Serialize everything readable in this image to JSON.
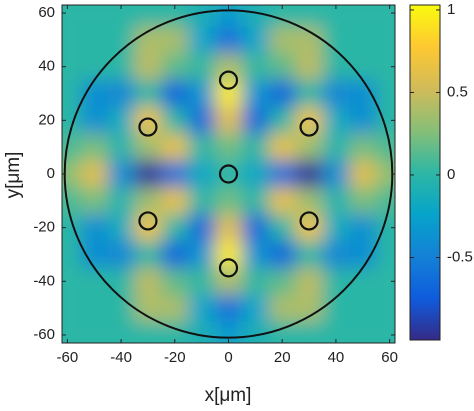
{
  "chart_data": {
    "type": "heatmap",
    "xlabel": "x[μm]",
    "ylabel": "y[μm]",
    "colormap": "parula",
    "x": [
      -60,
      -50,
      -40,
      -30,
      -20,
      -10,
      0,
      10,
      20,
      30,
      40,
      50,
      60
    ],
    "y": [
      60,
      50,
      40,
      30,
      20,
      10,
      0,
      -10,
      -20,
      -30,
      -40,
      -50,
      -60
    ],
    "z": [
      [
        0,
        0,
        0,
        0,
        0,
        -0.1,
        -0.3,
        -0.1,
        0,
        0,
        0,
        0,
        0
      ],
      [
        0,
        0,
        0,
        0.4,
        0.39,
        -0.23,
        -0.6,
        -0.23,
        0.39,
        0.4,
        0,
        0,
        0
      ],
      [
        0,
        0,
        0,
        0.45,
        0.15,
        0.03,
        0.4,
        0.03,
        0.15,
        0.45,
        0,
        0,
        0
      ],
      [
        0,
        -0.4,
        -0.45,
        0,
        -0.68,
        -0.34,
        0.95,
        -0.34,
        -0.68,
        0,
        -0.45,
        -0.4,
        0
      ],
      [
        0,
        -0.39,
        -0.15,
        0.68,
        0,
        -0.64,
        0.6,
        -0.64,
        0,
        0.68,
        -0.15,
        -0.39,
        0
      ],
      [
        0.1,
        0.23,
        -0.03,
        0.34,
        0.64,
        0,
        0.2,
        0,
        0.64,
        0.34,
        -0.03,
        0.23,
        0.1
      ],
      [
        0.3,
        0.6,
        -0.4,
        -0.95,
        -0.6,
        -0.2,
        0,
        -0.2,
        -0.6,
        -0.95,
        -0.4,
        0.6,
        0.3
      ],
      [
        0.1,
        0.23,
        -0.03,
        0.34,
        0.64,
        0,
        0.2,
        0,
        0.64,
        0.34,
        -0.03,
        0.23,
        0.1
      ],
      [
        0,
        -0.39,
        -0.15,
        0.68,
        0,
        -0.64,
        0.6,
        -0.64,
        0,
        0.68,
        -0.15,
        -0.39,
        0
      ],
      [
        0,
        -0.4,
        -0.45,
        0,
        -0.68,
        -0.34,
        0.95,
        -0.34,
        -0.68,
        0,
        -0.45,
        -0.4,
        0
      ],
      [
        0,
        0,
        0,
        0.45,
        0.15,
        0.03,
        0.4,
        0.03,
        0.15,
        0.45,
        0,
        0,
        0
      ],
      [
        0,
        0,
        0,
        0.4,
        0.39,
        -0.23,
        -0.6,
        -0.23,
        0.39,
        0.4,
        0,
        0,
        0
      ],
      [
        0,
        0,
        0,
        0,
        0,
        -0.1,
        -0.3,
        -0.1,
        0,
        0,
        0,
        0,
        0
      ]
    ],
    "aperture": {
      "x": 0,
      "y": 0,
      "r": 61
    },
    "markers": {
      "x": [
        0,
        30,
        30,
        0,
        -30,
        -30,
        0
      ],
      "y": [
        35,
        17.5,
        -17.5,
        -35,
        -17.5,
        17.5,
        0
      ]
    },
    "xlim": [
      -62,
      62
    ],
    "ylim": [
      -63,
      63
    ],
    "xticks": [
      -60,
      -40,
      -20,
      0,
      20,
      40,
      60
    ],
    "yticks": [
      -60,
      -40,
      -20,
      0,
      20,
      40,
      60
    ],
    "clim": [
      -1,
      1.03
    ],
    "cticks": [
      -0.5,
      0,
      0.5,
      1
    ]
  }
}
